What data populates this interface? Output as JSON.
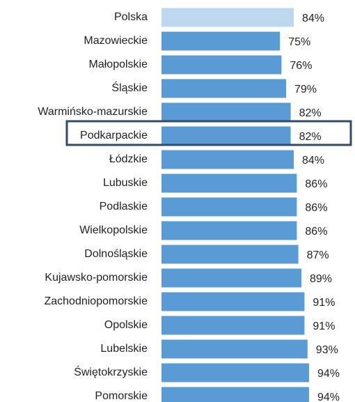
{
  "chart_data": {
    "type": "bar",
    "orientation": "horizontal",
    "categories": [
      "Polska",
      "Mazowieckie",
      "Małopolskie",
      "Śląskie",
      "Warmińsko-mazurskie",
      "Podkarpackie",
      "Łódzkie",
      "Lubuskie",
      "Podlaskie",
      "Wielkopolskie",
      "Dolnośląskie",
      "Kujawsko-pomorskie",
      "Zachodniopomorskie",
      "Opolskie",
      "Lubelskie",
      "Świętokrzyskie",
      "Pomorskie"
    ],
    "values": [
      84,
      75,
      76,
      79,
      82,
      82,
      84,
      86,
      86,
      86,
      87,
      89,
      91,
      91,
      93,
      94,
      94
    ],
    "value_labels": [
      "84%",
      "75%",
      "76%",
      "79%",
      "82%",
      "82%",
      "84%",
      "86%",
      "86%",
      "86%",
      "87%",
      "89%",
      "91%",
      "91%",
      "93%",
      "94%",
      "94%"
    ],
    "colors": [
      "#bdd7ee",
      "#5b9bd5",
      "#5b9bd5",
      "#5b9bd5",
      "#5b9bd5",
      "#5b9bd5",
      "#5b9bd5",
      "#5b9bd5",
      "#5b9bd5",
      "#5b9bd5",
      "#5b9bd5",
      "#5b9bd5",
      "#5b9bd5",
      "#5b9bd5",
      "#5b9bd5",
      "#5b9bd5",
      "#5b9bd5"
    ]
  }
}
